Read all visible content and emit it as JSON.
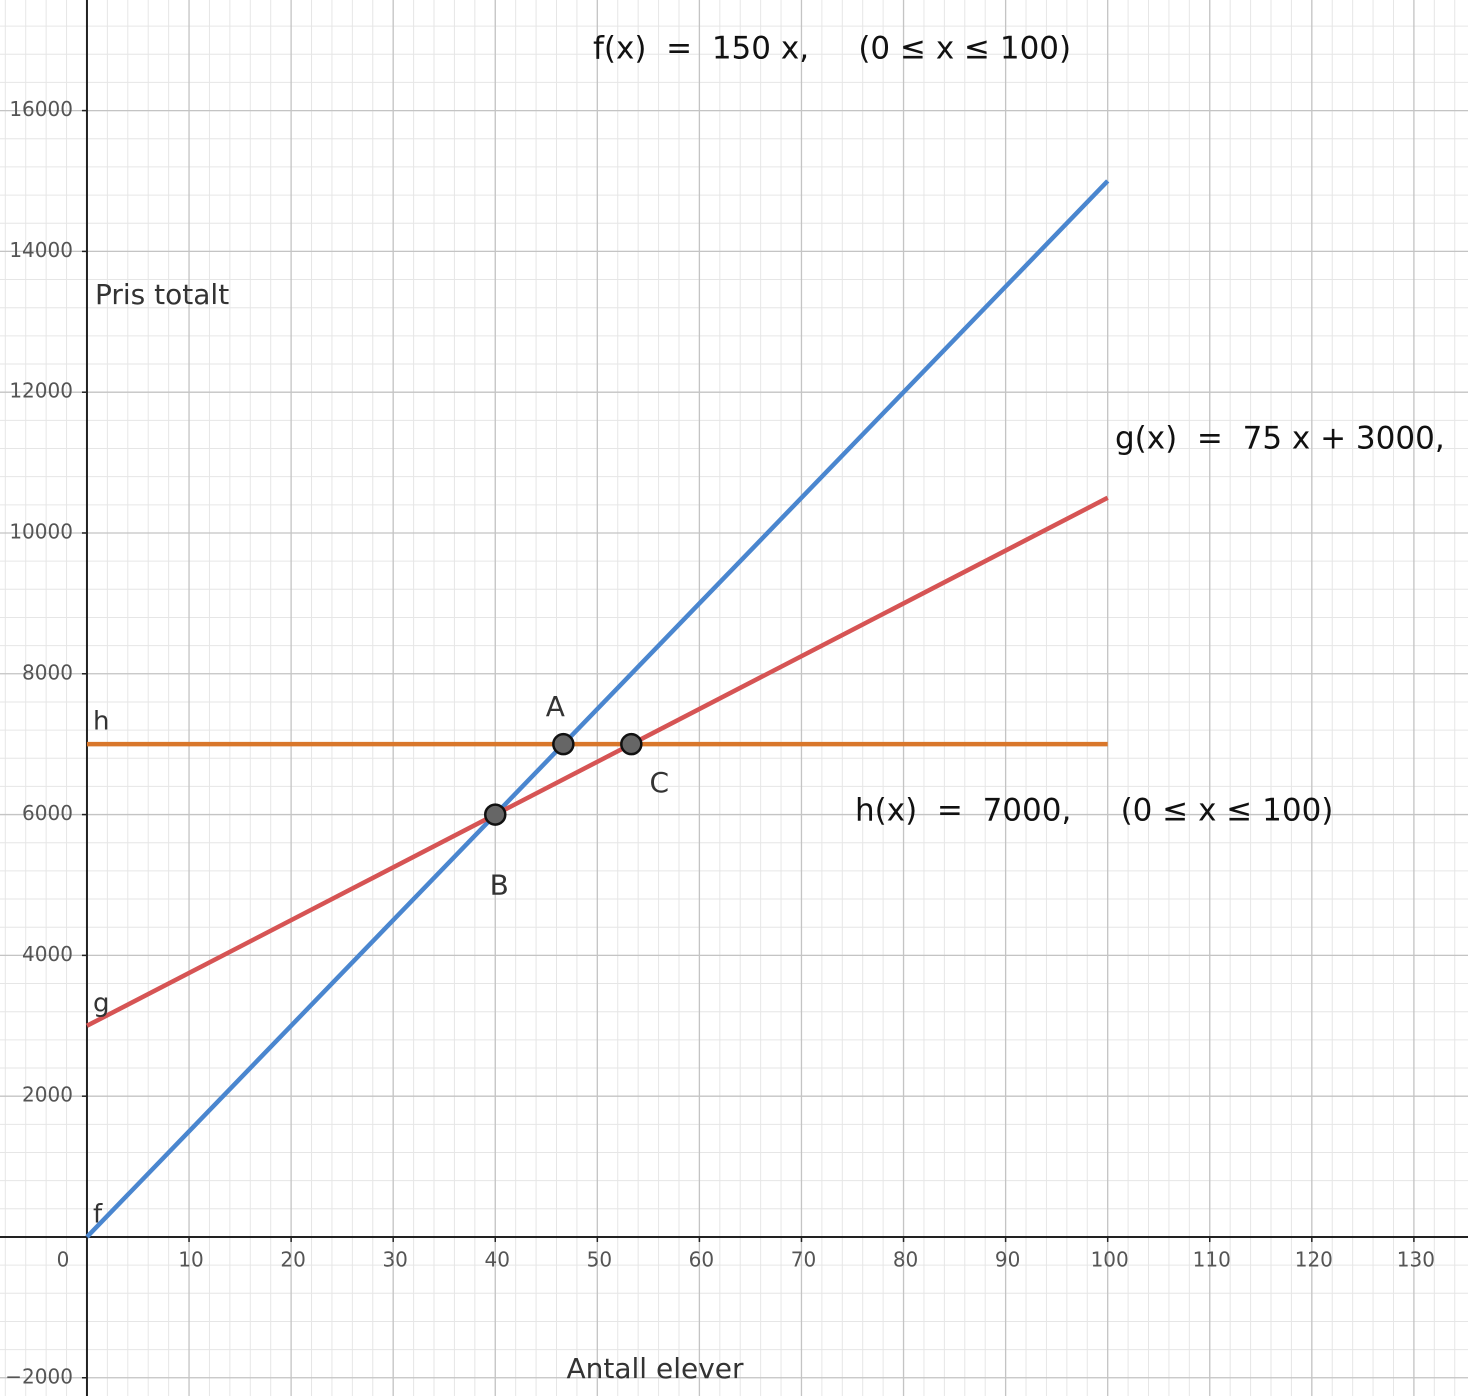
{
  "chart_data": {
    "type": "line",
    "x_label": "Antall elever",
    "y_label": "Pris totalt",
    "xlim": [
      -8.52,
      135.3
    ],
    "ylim": [
      -2259,
      17571
    ],
    "xticks": [
      0,
      10,
      20,
      30,
      40,
      50,
      60,
      70,
      80,
      90,
      100,
      110,
      120,
      130
    ],
    "yticks": [
      {
        "value": -2000,
        "label": "−2000"
      },
      2000,
      4000,
      6000,
      8000,
      10000,
      12000,
      14000,
      16000
    ],
    "grid": true,
    "minor_grid": true,
    "series": [
      {
        "name": "f",
        "color": "#4a86cf",
        "x": [
          0,
          100
        ],
        "values": [
          0,
          15000
        ]
      },
      {
        "name": "g",
        "color": "#d65454",
        "x": [
          0,
          100
        ],
        "values": [
          3000,
          10500
        ]
      },
      {
        "name": "h",
        "color": "#d9772b",
        "x": [
          0,
          100
        ],
        "values": [
          7000,
          7000
        ]
      }
    ],
    "points": [
      {
        "name": "A",
        "x": 46.67,
        "y": 7000
      },
      {
        "name": "B",
        "x": 40,
        "y": 6000
      },
      {
        "name": "C",
        "x": 53.33,
        "y": 7000
      }
    ],
    "annotations": [
      "f(x)  =  150 x,     (0 ≤ x ≤ 100)",
      "g(x)  =  75 x + 3000,",
      "h(x)  =  7000,     (0 ≤ x ≤ 100)"
    ]
  }
}
